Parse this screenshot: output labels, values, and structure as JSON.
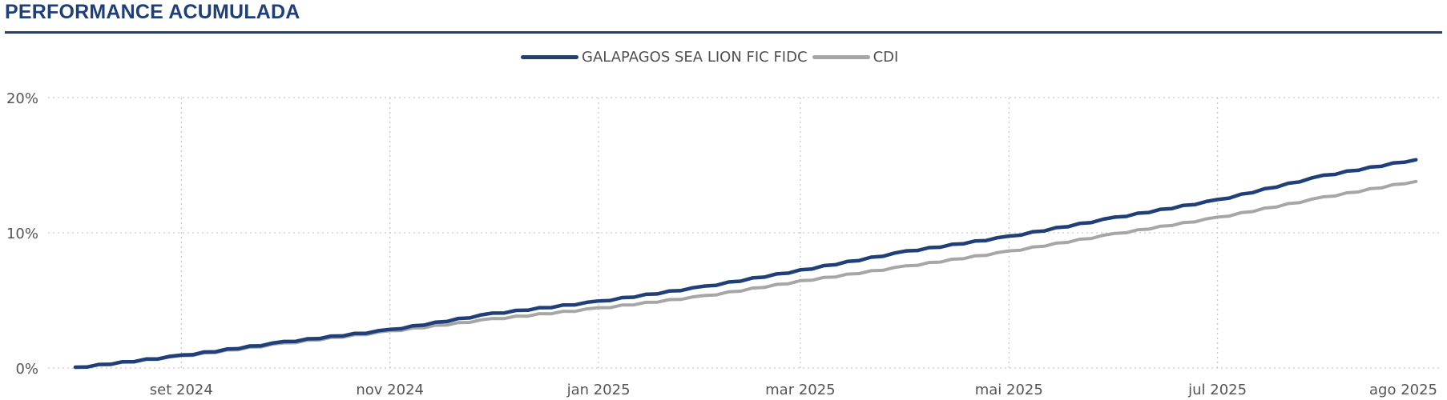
{
  "header": {
    "title": "PERFORMANCE ACUMULADA"
  },
  "legend": {
    "items": [
      {
        "label": "GALAPAGOS SEA LION FIC FIDC",
        "color": "#1f3f78"
      },
      {
        "label": "CDI",
        "color": "#a6a6a6"
      }
    ]
  },
  "chart_data": {
    "type": "line",
    "title": "PERFORMANCE ACUMULADA",
    "xlabel": "",
    "ylabel": "",
    "ylim": [
      0,
      20
    ],
    "y_ticks": [
      0,
      10,
      20
    ],
    "y_tick_labels": [
      "0%",
      "10%",
      "20%"
    ],
    "x_range": [
      "2024-08-01",
      "2025-08-31"
    ],
    "x_ticks": [
      "2024-09-01",
      "2024-11-01",
      "2025-01-01",
      "2025-03-01",
      "2025-05-01",
      "2025-07-01",
      "2025-08-01"
    ],
    "x_tick_labels": [
      "set 2024",
      "nov 2024",
      "jan 2025",
      "mar 2025",
      "mai 2025",
      "jul 2025",
      "ago 2025"
    ],
    "grid": true,
    "legend_position": "top-center",
    "series": [
      {
        "name": "GALAPAGOS SEA LION FIC FIDC",
        "color": "#1f3f78",
        "points": [
          [
            "2024-08-01",
            0.0
          ],
          [
            "2024-09-01",
            0.9
          ],
          [
            "2024-10-01",
            1.9
          ],
          [
            "2024-11-01",
            2.8
          ],
          [
            "2024-12-01",
            4.0
          ],
          [
            "2025-01-01",
            4.9
          ],
          [
            "2025-02-01",
            6.0
          ],
          [
            "2025-03-01",
            7.2
          ],
          [
            "2025-04-01",
            8.6
          ],
          [
            "2025-05-01",
            9.7
          ],
          [
            "2025-06-01",
            11.1
          ],
          [
            "2025-07-01",
            12.4
          ],
          [
            "2025-08-01",
            14.2
          ],
          [
            "2025-08-28",
            15.4
          ]
        ]
      },
      {
        "name": "CDI",
        "color": "#a6a6a6",
        "points": [
          [
            "2024-08-01",
            0.0
          ],
          [
            "2024-09-01",
            0.85
          ],
          [
            "2024-10-01",
            1.8
          ],
          [
            "2024-11-01",
            2.7
          ],
          [
            "2024-12-01",
            3.6
          ],
          [
            "2025-01-01",
            4.4
          ],
          [
            "2025-02-01",
            5.3
          ],
          [
            "2025-03-01",
            6.4
          ],
          [
            "2025-04-01",
            7.5
          ],
          [
            "2025-05-01",
            8.6
          ],
          [
            "2025-06-01",
            9.9
          ],
          [
            "2025-07-01",
            11.1
          ],
          [
            "2025-08-01",
            12.6
          ],
          [
            "2025-08-28",
            13.8
          ]
        ]
      }
    ]
  }
}
